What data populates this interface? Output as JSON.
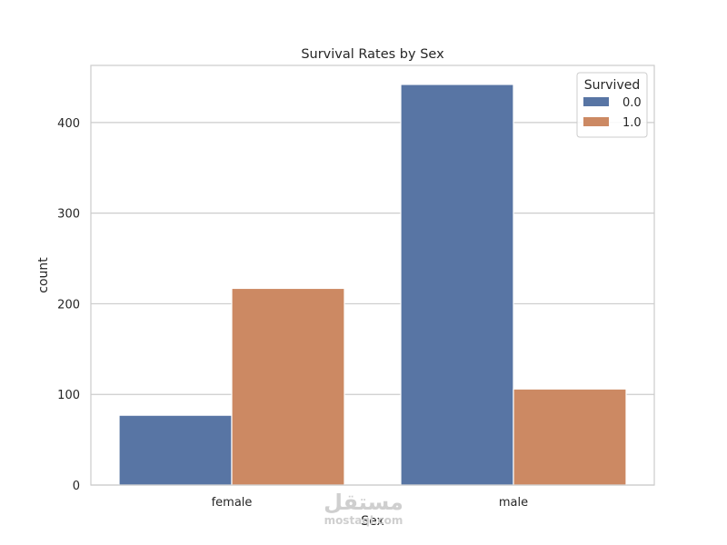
{
  "chart_data": {
    "type": "bar",
    "title": "Survival Rates by Sex",
    "xlabel": "Sex",
    "ylabel": "count",
    "categories": [
      "female",
      "male"
    ],
    "legend_title": "Survived",
    "legend_position": "top-right",
    "series": [
      {
        "name": "0.0",
        "values": [
          77,
          442
        ],
        "color": "#5875a4"
      },
      {
        "name": "1.0",
        "values": [
          217,
          106
        ],
        "color": "#cc8963"
      }
    ],
    "ylim": [
      0,
      463
    ],
    "yticks": [
      0,
      100,
      200,
      300,
      400
    ],
    "grid": "horizontal"
  },
  "watermark": {
    "logo": "مستقل",
    "site": "mostaql.com"
  }
}
